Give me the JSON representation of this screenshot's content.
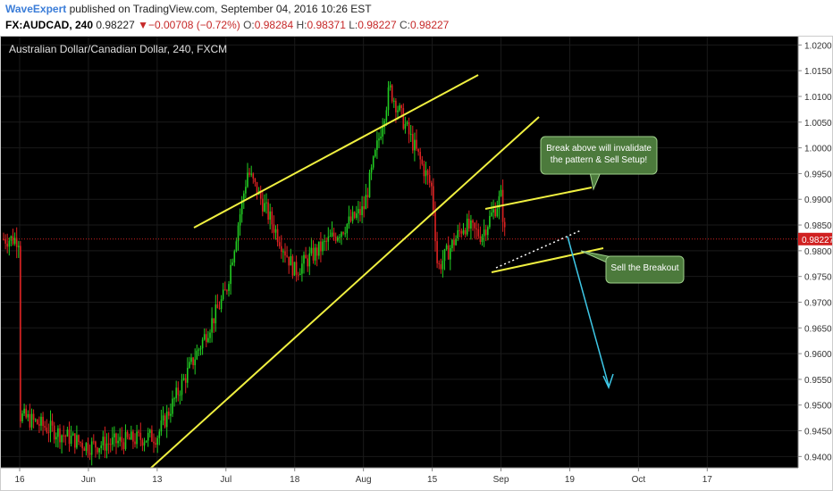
{
  "header": {
    "author": "WaveExpert",
    "published_text": "published on TradingView.com, September 04, 2016 10:26 EST",
    "symbol": "FX:AUDCAD, 240",
    "last": "0.98227",
    "change": "−0.00708 (−0.72%)",
    "o_label": "O:",
    "o_value": "0.98284",
    "h_label": "H:",
    "h_value": "0.98371",
    "l_label": "L:",
    "l_value": "0.98227",
    "c_label": "C:",
    "c_value": "0.98227",
    "down_arrow": "▼"
  },
  "chart_title": "Australian Dollar/Canadian Dollar, 240, FXCM",
  "colors": {
    "background": "#000000",
    "up": "#22cc22",
    "down": "#dd2222",
    "trendline": "#f0f040",
    "arrow": "#3ec7e6",
    "price_line": "#d02020",
    "callout_bg": "#4c7a3c"
  },
  "chart_data": {
    "type": "candlestick",
    "title": "Australian Dollar/Canadian Dollar, 240, FXCM",
    "x_ticks": [
      "16",
      "Jun",
      "13",
      "Jul",
      "18",
      "Aug",
      "15",
      "Sep",
      "19",
      "Oct",
      "17"
    ],
    "y_ticks": [
      "1.02000",
      "1.01500",
      "1.01000",
      "1.00500",
      "1.00000",
      "0.99500",
      "0.99000",
      "0.98500",
      "0.98000",
      "0.97500",
      "0.97000",
      "0.96500",
      "0.96000",
      "0.95500",
      "0.95000",
      "0.94500",
      "0.94000"
    ],
    "ylim": [
      0.9385,
      1.0218
    ],
    "last_price": "0.98227",
    "price_path": [
      [
        "16",
        0.948
      ],
      [
        "Jun",
        0.942
      ],
      [
        "13",
        0.944
      ],
      [
        "Jul",
        0.972
      ],
      [
        "Jul+5",
        0.9955
      ],
      [
        "18",
        0.976
      ],
      [
        "Aug",
        0.988
      ],
      [
        "Aug+6",
        1.0115
      ],
      [
        "15",
        0.992
      ],
      [
        "Aug 18",
        0.9765
      ],
      [
        "Aug 24",
        0.985
      ],
      [
        "Aug 28",
        0.983
      ],
      [
        "Sep",
        0.9905
      ],
      [
        "Sep+1",
        0.98227
      ]
    ],
    "annotations": [
      "Break above will invalidate the pattern & Sell Setup!",
      "Sell the Breakout"
    ]
  }
}
